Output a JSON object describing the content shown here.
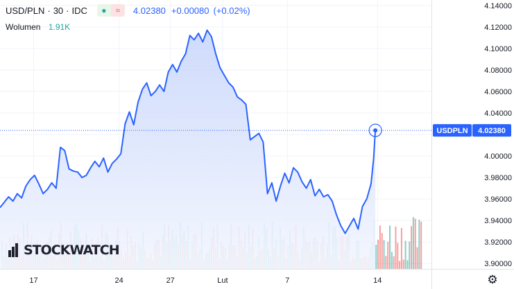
{
  "header": {
    "symbol": "USD/PLN",
    "interval": "30",
    "source": "IDC",
    "sep1": "·",
    "sep2": "·",
    "price": "4.02380",
    "change": "+0.00080",
    "change_pct": "(+0.02%)"
  },
  "volume": {
    "label": "Wolumen",
    "value": "1.91K"
  },
  "logo": {
    "text": "STOCKWATCH"
  },
  "colors": {
    "line": "#2962ff",
    "area_top": "#c9d7fb",
    "area_bottom": "#f3f6fe",
    "vol_up": "#26a69a",
    "vol_down": "#ef5350",
    "axis_text": "#131722"
  },
  "chart_data": {
    "type": "area",
    "title": "USD/PLN · 30 · IDC",
    "xlabel": "",
    "ylabel": "",
    "ylim": [
      3.895,
      4.145
    ],
    "yticks": [
      4.14,
      4.12,
      4.1,
      4.08,
      4.06,
      4.04,
      4.02,
      4.0,
      3.98,
      3.96,
      3.94,
      3.92,
      3.9
    ],
    "ytick_labels": [
      "4.14000",
      "4.12000",
      "4.10000",
      "4.08000",
      "4.06000",
      "4.04000",
      "4.02000",
      "4.00000",
      "3.98000",
      "3.96000",
      "3.94000",
      "3.92000",
      "3.90000"
    ],
    "xrange": [
      0,
      100
    ],
    "xticks": [
      {
        "x": 7.8,
        "label": "17"
      },
      {
        "x": 27.6,
        "label": "24"
      },
      {
        "x": 39.5,
        "label": "27"
      },
      {
        "x": 51.6,
        "label": "Lut"
      },
      {
        "x": 66.6,
        "label": "7"
      },
      {
        "x": 87.5,
        "label": "14"
      }
    ],
    "series": [
      {
        "name": "USDPLN",
        "x": [
          0,
          1,
          2,
          3,
          4,
          5,
          6,
          7,
          8,
          9,
          10,
          11,
          12,
          13,
          14,
          15,
          16,
          17,
          18,
          19,
          20,
          21,
          22,
          23,
          24,
          25,
          26,
          27,
          28,
          29,
          30,
          31,
          32,
          33,
          34,
          35,
          36,
          37,
          38,
          39,
          40,
          41,
          42,
          43,
          44,
          45,
          46,
          47,
          48,
          49,
          50,
          51,
          52,
          53,
          54,
          55,
          56,
          57,
          58,
          59,
          60,
          61,
          62,
          63,
          64,
          65,
          66,
          67,
          68,
          69,
          70,
          71,
          72,
          73,
          74,
          75,
          76,
          77,
          78,
          79,
          80,
          81,
          82,
          83,
          84,
          85,
          86,
          86.6,
          87
        ],
        "values": [
          3.952,
          3.957,
          3.962,
          3.958,
          3.965,
          3.961,
          3.972,
          3.978,
          3.982,
          3.974,
          3.965,
          3.969,
          3.975,
          3.97,
          4.008,
          4.005,
          3.988,
          3.986,
          3.985,
          3.98,
          3.982,
          3.989,
          3.995,
          3.99,
          3.998,
          3.985,
          3.993,
          3.997,
          4.002,
          4.03,
          4.041,
          4.029,
          4.05,
          4.062,
          4.068,
          4.056,
          4.06,
          4.066,
          4.06,
          4.078,
          4.085,
          4.078,
          4.088,
          4.095,
          4.112,
          4.108,
          4.114,
          4.106,
          4.117,
          4.111,
          4.095,
          4.082,
          4.075,
          4.068,
          4.064,
          4.055,
          4.052,
          4.048,
          4.015,
          4.018,
          4.021,
          4.013,
          3.965,
          3.975,
          3.958,
          3.972,
          3.984,
          3.975,
          3.989,
          3.985,
          3.976,
          3.97,
          3.978,
          3.963,
          3.969,
          3.962,
          3.964,
          3.958,
          3.945,
          3.935,
          3.928,
          3.935,
          3.942,
          3.932,
          3.953,
          3.96,
          3.974,
          3.998,
          4.024
        ]
      },
      {
        "name": "Wolumen",
        "type": "bar",
        "seed": 7,
        "count": 215,
        "note": "volume bars, relative heights 0-1"
      }
    ],
    "last_value": {
      "label": "USDPLN",
      "value": "4.02380",
      "y": 4.0238
    },
    "grid": true,
    "legend": "none"
  }
}
